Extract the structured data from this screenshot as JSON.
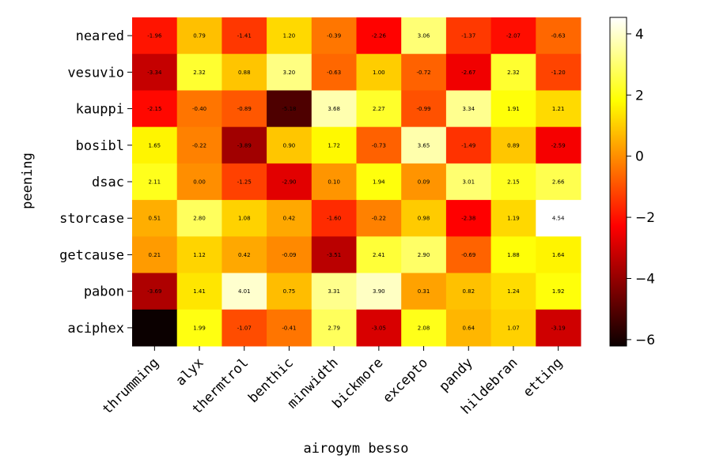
{
  "chart_data": {
    "type": "heatmap",
    "title": "",
    "xlabel": "airogym besso",
    "ylabel": "peening",
    "x_categories": [
      "thrumming",
      "alyx",
      "thermtrol",
      "benthic",
      "minwidth",
      "bickmore",
      "excepto",
      "pandy",
      "hildebran",
      "etting"
    ],
    "y_categories": [
      "neared",
      "vesuvio",
      "kauppi",
      "bosibl",
      "dsac",
      "storcase",
      "getcause",
      "pabon",
      "aciphex"
    ],
    "values": [
      [
        -1.96,
        0.79,
        -1.41,
        1.2,
        -0.39,
        -2.26,
        3.06,
        -1.37,
        -2.07,
        -0.63
      ],
      [
        -3.34,
        2.32,
        0.88,
        3.2,
        -0.63,
        1.0,
        -0.72,
        -2.67,
        2.32,
        -1.2
      ],
      [
        -2.15,
        -0.4,
        -0.89,
        -5.18,
        3.68,
        2.27,
        -0.99,
        3.34,
        1.91,
        1.21
      ],
      [
        1.65,
        -0.22,
        -3.89,
        0.9,
        1.72,
        -0.73,
        3.65,
        -1.49,
        0.89,
        -2.59
      ],
      [
        2.11,
        0.0,
        -1.25,
        -2.9,
        0.1,
        1.94,
        0.09,
        3.01,
        2.15,
        2.66
      ],
      [
        0.51,
        2.8,
        1.08,
        0.42,
        -1.6,
        -0.22,
        0.98,
        -2.38,
        1.19,
        4.54
      ],
      [
        0.21,
        1.12,
        0.42,
        -0.09,
        -3.51,
        2.41,
        2.9,
        -0.69,
        1.88,
        1.64
      ],
      [
        -3.69,
        1.41,
        4.01,
        0.75,
        3.31,
        3.9,
        0.31,
        0.82,
        1.24,
        1.92
      ],
      [
        -6.21,
        1.99,
        -1.07,
        -0.41,
        2.79,
        -3.05,
        2.08,
        0.64,
        1.07,
        -3.19
      ]
    ],
    "labels": [
      [
        "-1.96",
        "0.79",
        "-1.41",
        "1.20",
        "-0.39",
        "-2.26",
        "3.06",
        "-1.37",
        "-2.07",
        "-0.63"
      ],
      [
        "-3.34",
        "2.32",
        "0.88",
        "3.20",
        "-0.63",
        "1.00",
        "-0.72",
        "-2.67",
        "2.32",
        "-1.20"
      ],
      [
        "-2.15",
        "-0.40",
        "-0.89",
        "-5.18",
        "3.68",
        "2.27",
        "-0.99",
        "3.34",
        "1.91",
        "1.21"
      ],
      [
        "1.65",
        "-0.22",
        "-3.89",
        "0.90",
        "1.72",
        "-0.73",
        "3.65",
        "-1.49",
        "0.89",
        "-2.59"
      ],
      [
        "2.11",
        "0.00",
        "-1.25",
        "-2.90",
        "0.10",
        "1.94",
        "0.09",
        "3.01",
        "2.15",
        "2.66"
      ],
      [
        "0.51",
        "2.80",
        "1.08",
        "0.42",
        "-1.60",
        "-0.22",
        "0.98",
        "-2.38",
        "1.19",
        "4.54"
      ],
      [
        "0.21",
        "1.12",
        "0.42",
        "-0.09",
        "-3.51",
        "2.41",
        "2.90",
        "-0.69",
        "1.88",
        "1.64"
      ],
      [
        "-3.69",
        "1.41",
        "4.01",
        "0.75",
        "3.31",
        "3.90",
        "0.31",
        "0.82",
        "1.24",
        "1.92"
      ],
      [
        "",
        "1.99",
        "-1.07",
        "-0.41",
        "2.79",
        "-3.05",
        "2.08",
        "0.64",
        "1.07",
        "-3.19"
      ]
    ],
    "colormap": "hot",
    "vmin": -6.21,
    "vmax": 4.54,
    "colorbar_ticks": [
      -6,
      -4,
      -2,
      0,
      2,
      4
    ],
    "colorbar_tick_labels": [
      "−6",
      "−4",
      "−2",
      "0",
      "2",
      "4"
    ]
  }
}
